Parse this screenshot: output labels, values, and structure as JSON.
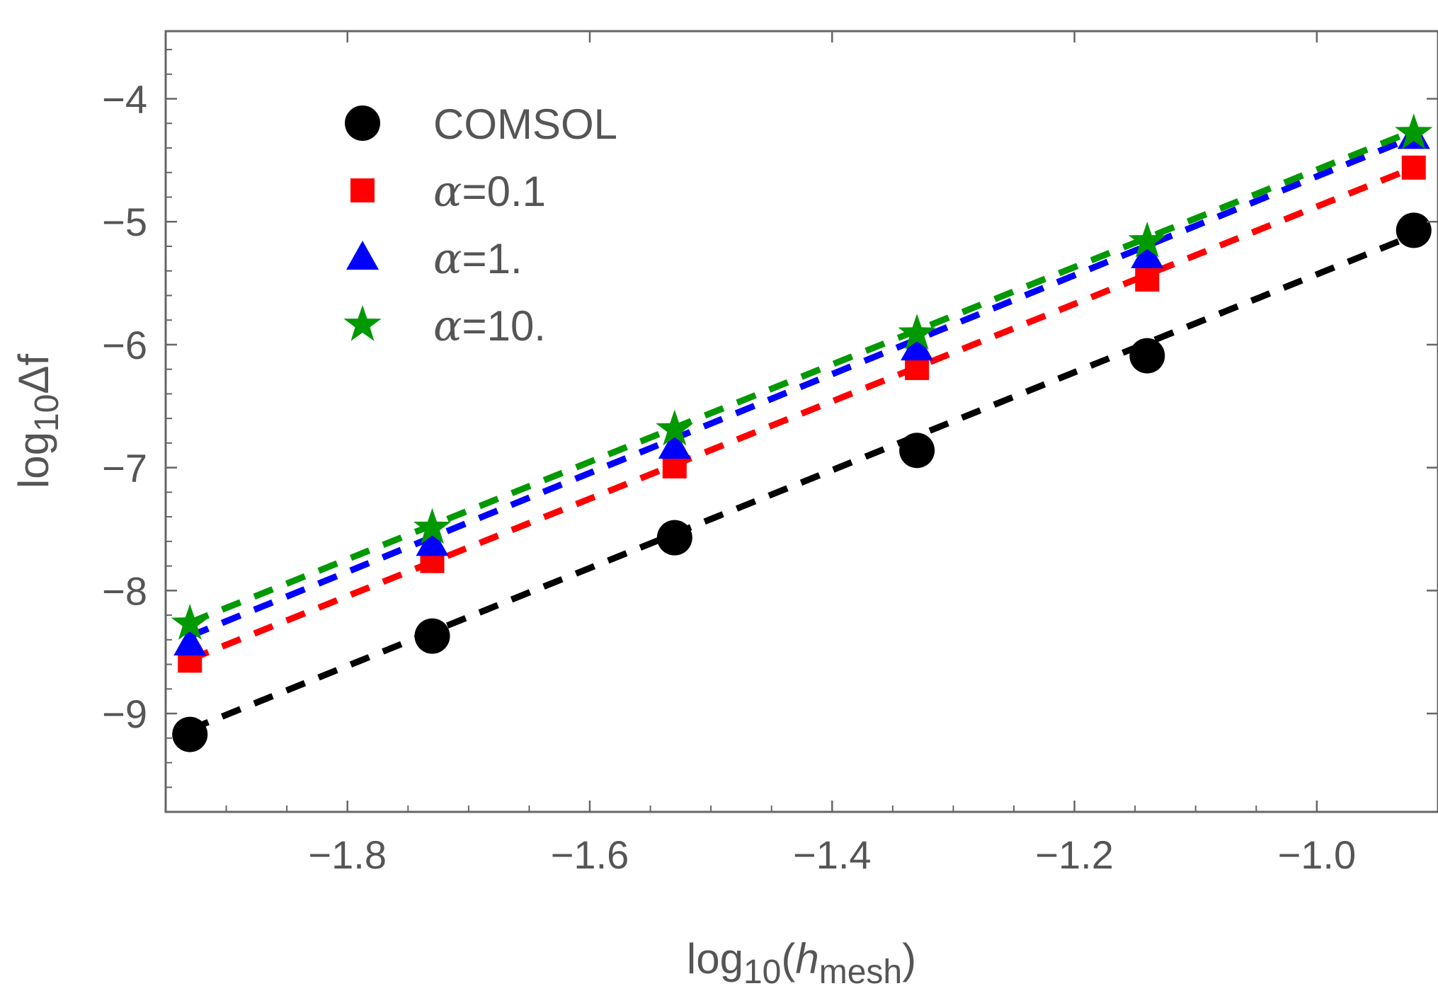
{
  "chart_data": {
    "type": "scatter",
    "title": "",
    "xlabel": {
      "base": "log",
      "sub": "10",
      "open": "(",
      "var": "h",
      "var_sub": "mesh",
      "close": ")"
    },
    "ylabel": {
      "base": "log",
      "sub": "10",
      "rest": "Δf"
    },
    "xlim": [
      -1.95,
      -0.9
    ],
    "ylim": [
      -9.8,
      -3.45
    ],
    "xticks": [
      -1.8,
      -1.6,
      -1.4,
      -1.2,
      -1.0
    ],
    "xtick_labels": [
      "−1.8",
      "−1.6",
      "−1.4",
      "−1.2",
      "−1.0"
    ],
    "yticks": [
      -9,
      -8,
      -7,
      -6,
      -5,
      -4
    ],
    "ytick_labels": [
      "−9",
      "−8",
      "−7",
      "−6",
      "−5",
      "−4"
    ],
    "grid": false,
    "legend_position": "top-left",
    "x": [
      -1.93,
      -1.73,
      -1.53,
      -1.33,
      -1.14,
      -0.92
    ],
    "series": [
      {
        "name": "COMSOL",
        "legend": {
          "text": "COMSOL"
        },
        "marker": "circle",
        "color": "#000000",
        "values": [
          -9.17,
          -8.37,
          -7.57,
          -6.86,
          -6.09,
          -5.07
        ],
        "fit": [
          -9.13,
          -5.11
        ]
      },
      {
        "name": "alpha=0.1",
        "legend": {
          "greek": "α",
          "rest": "=0.1"
        },
        "marker": "square",
        "color": "#ff0000",
        "values": [
          -8.57,
          -7.76,
          -6.99,
          -6.19,
          -5.47,
          -4.56
        ],
        "fit": [
          -8.56,
          -4.56
        ]
      },
      {
        "name": "alpha=1.",
        "legend": {
          "greek": "α",
          "rest": "=1."
        },
        "marker": "triangle",
        "color": "#0000ff",
        "values": [
          -8.43,
          -7.62,
          -6.83,
          -6.03,
          -5.28,
          -4.31
        ],
        "fit": [
          -8.37,
          -4.31
        ]
      },
      {
        "name": "alpha=10.",
        "legend": {
          "greek": "α",
          "rest": "=10."
        },
        "marker": "star",
        "color": "#009900",
        "values": [
          -8.27,
          -7.49,
          -6.69,
          -5.91,
          -5.16,
          -4.28
        ],
        "fit": [
          -8.26,
          -4.26
        ]
      }
    ]
  }
}
